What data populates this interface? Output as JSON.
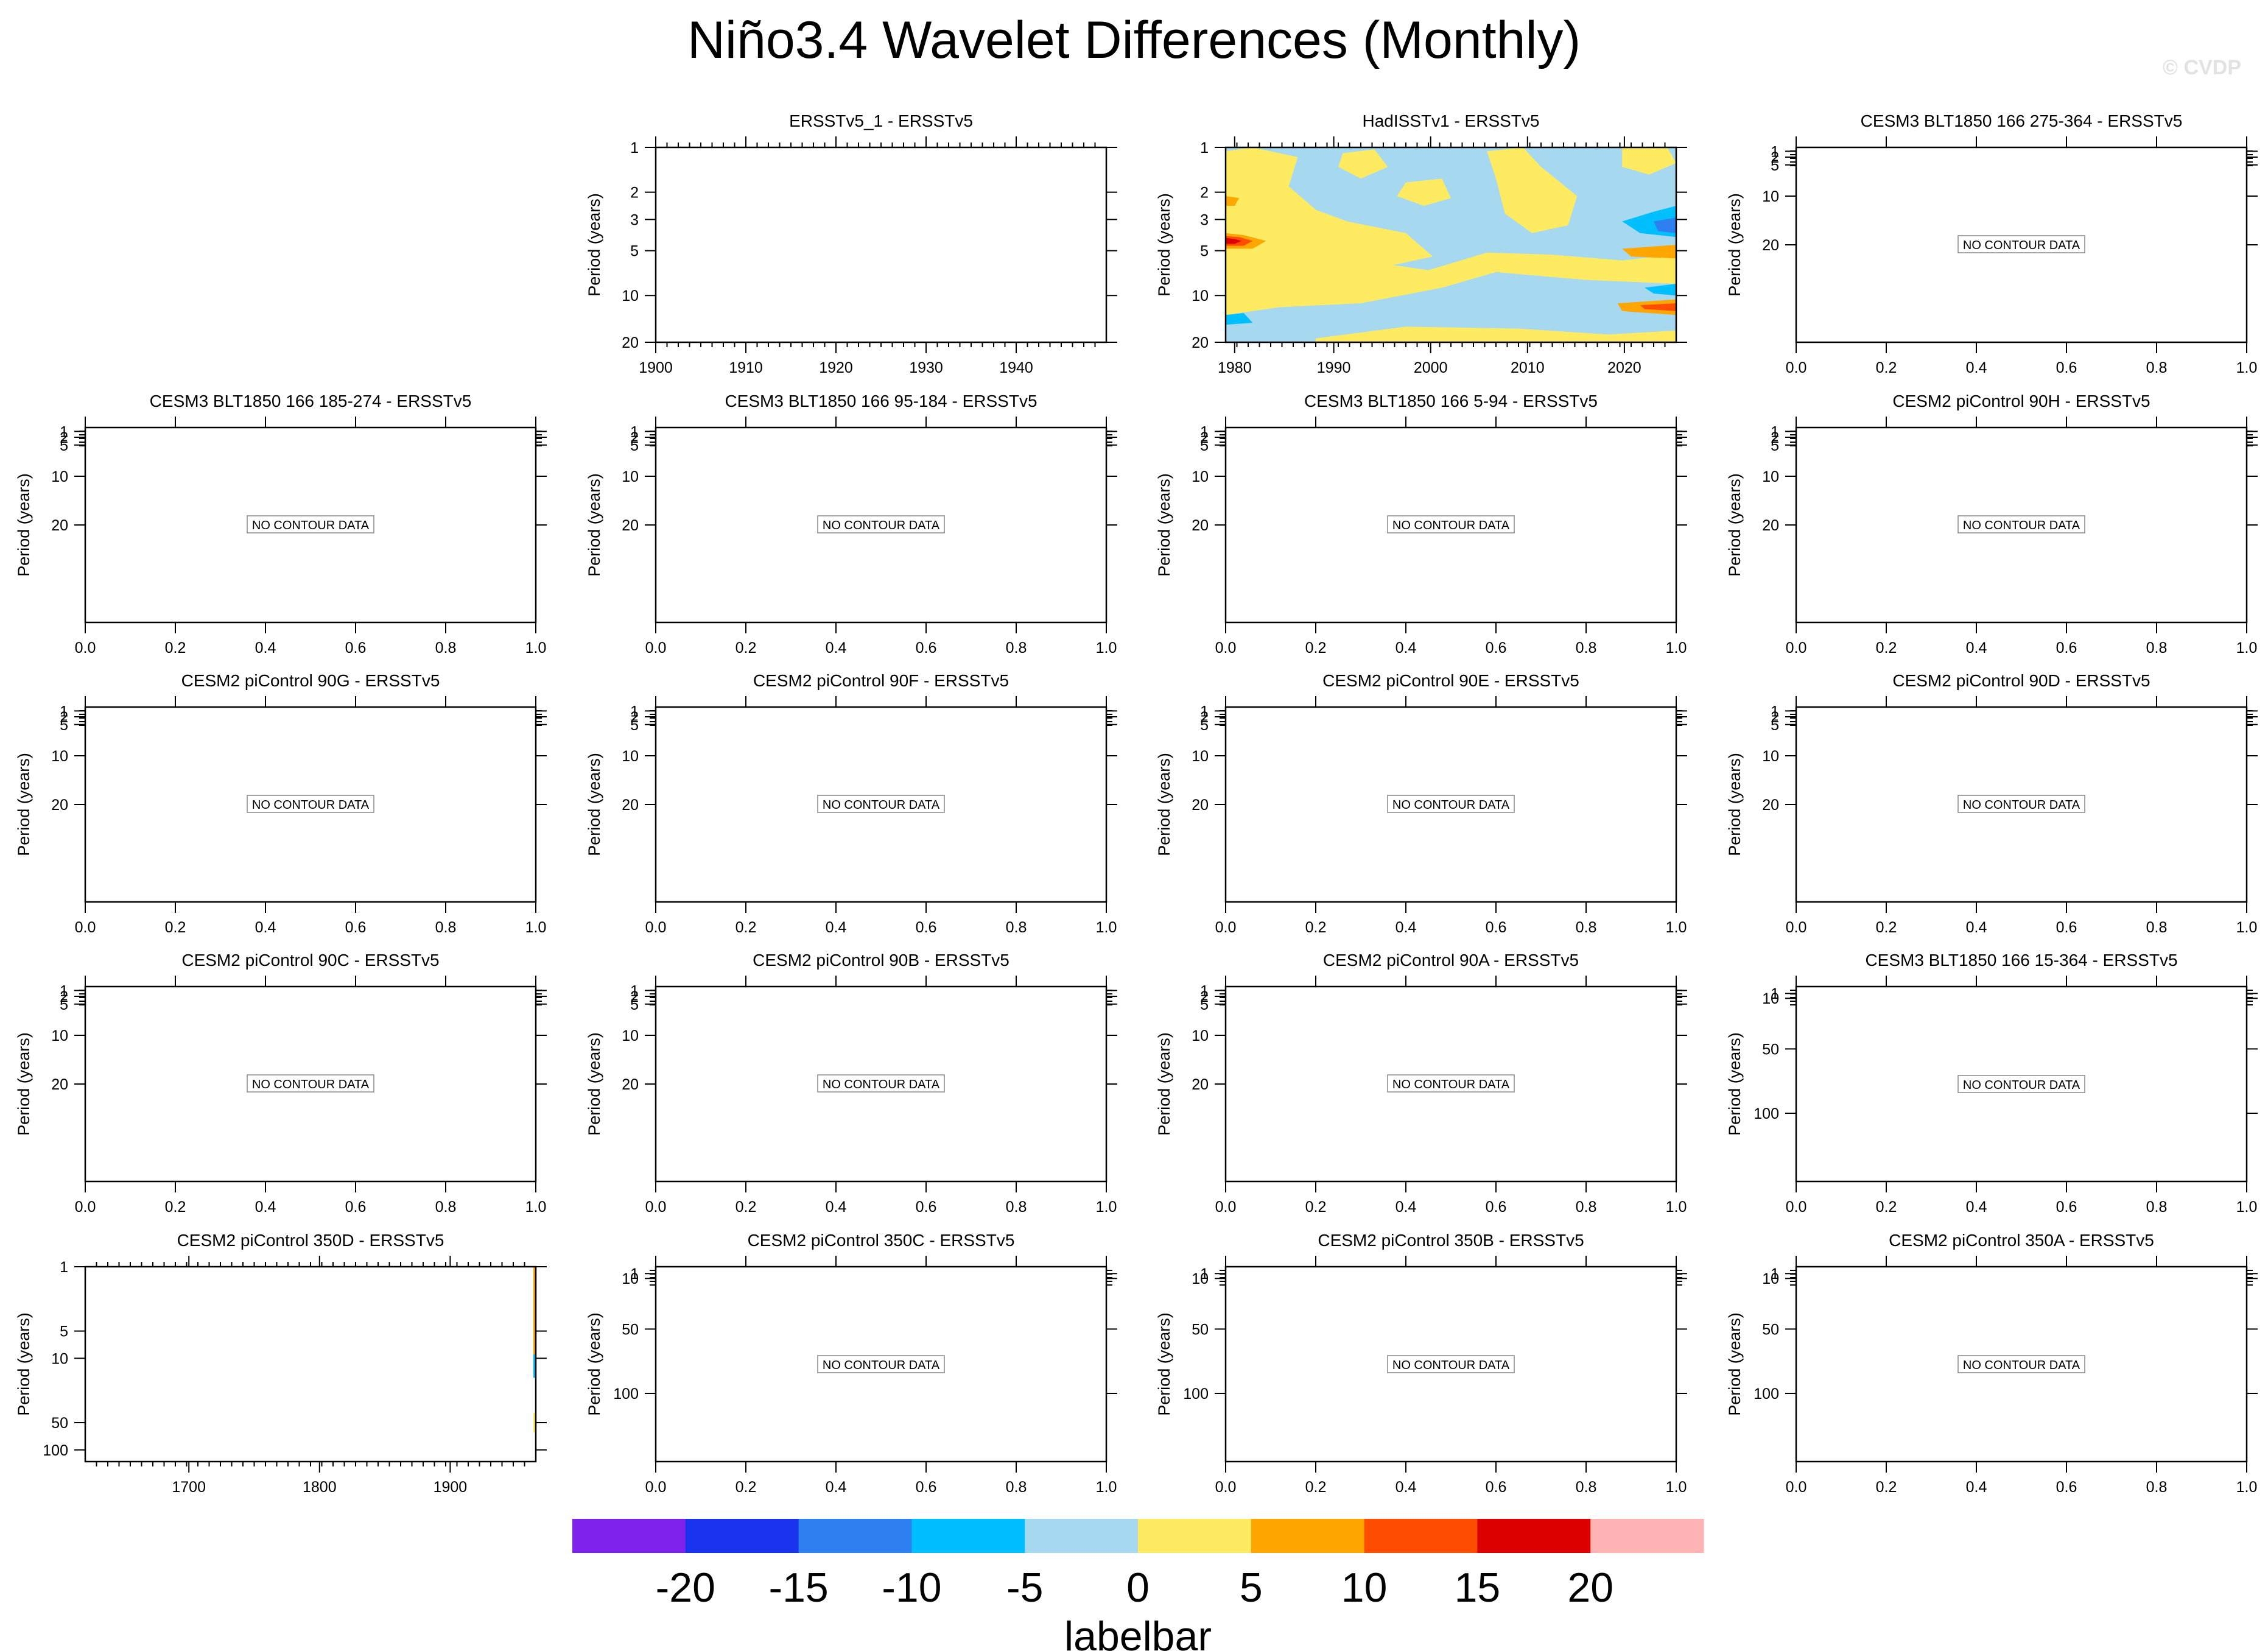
{
  "title": "Niño3.4 Wavelet Differences (Monthly)",
  "watermark": "© CVDP",
  "no_data_text": "NO CONTOUR DATA",
  "y_label": "Period (years)",
  "labelbar": {
    "label": "labelbar",
    "ticks": [
      "-20",
      "-15",
      "-10",
      "-5",
      "0",
      "5",
      "10",
      "15",
      "20"
    ],
    "colors": [
      "#7f22ec",
      "#1a33ef",
      "#2e7ff0",
      "#00bfff",
      "#a6d8f0",
      "#ffeb62",
      "#ffa600",
      "#ff4d00",
      "#dd0000",
      "#ffb3b3"
    ]
  },
  "chart_data": [
    {
      "type": "heatmap",
      "title": "ERSSTv5_1 - ERSSTv5",
      "state": "empty",
      "ylabel": "Period (years)",
      "y_ticks": [
        "1",
        "2",
        "3",
        "5",
        "10",
        "20"
      ],
      "x_ticks": [
        "1900",
        "1910",
        "1920",
        "1930",
        "1940"
      ]
    },
    {
      "type": "heatmap",
      "title": "HadISSTv1 - ERSSTv5",
      "state": "contour",
      "ylabel": "Period (years)",
      "y_ticks": [
        "1",
        "2",
        "3",
        "5",
        "10",
        "20"
      ],
      "x_ticks": [
        "1980",
        "1990",
        "2000",
        "2010",
        "2020"
      ]
    },
    {
      "type": "heatmap",
      "title": "CESM3 BLT1850 166 275-364 - ERSSTv5",
      "state": "no-data",
      "ylabel": "Period (years)",
      "y_ticks": [
        "1",
        "2",
        "5",
        "10",
        "20"
      ],
      "x_ticks": [
        "0.0",
        "0.2",
        "0.4",
        "0.6",
        "0.8",
        "1.0"
      ]
    },
    {
      "type": "heatmap",
      "title": "CESM3 BLT1850 166 185-274 - ERSSTv5",
      "state": "no-data",
      "ylabel": "Period (years)",
      "y_ticks": [
        "1",
        "2",
        "5",
        "10",
        "20"
      ],
      "x_ticks": [
        "0.0",
        "0.2",
        "0.4",
        "0.6",
        "0.8",
        "1.0"
      ]
    },
    {
      "type": "heatmap",
      "title": "CESM3 BLT1850 166 95-184 - ERSSTv5",
      "state": "no-data",
      "ylabel": "Period (years)",
      "y_ticks": [
        "1",
        "2",
        "5",
        "10",
        "20"
      ],
      "x_ticks": [
        "0.0",
        "0.2",
        "0.4",
        "0.6",
        "0.8",
        "1.0"
      ]
    },
    {
      "type": "heatmap",
      "title": "CESM3 BLT1850 166 5-94 - ERSSTv5",
      "state": "no-data",
      "ylabel": "Period (years)",
      "y_ticks": [
        "1",
        "2",
        "5",
        "10",
        "20"
      ],
      "x_ticks": [
        "0.0",
        "0.2",
        "0.4",
        "0.6",
        "0.8",
        "1.0"
      ]
    },
    {
      "type": "heatmap",
      "title": "CESM2 piControl 90H - ERSSTv5",
      "state": "no-data",
      "ylabel": "Period (years)",
      "y_ticks": [
        "1",
        "2",
        "5",
        "10",
        "20"
      ],
      "x_ticks": [
        "0.0",
        "0.2",
        "0.4",
        "0.6",
        "0.8",
        "1.0"
      ]
    },
    {
      "type": "heatmap",
      "title": "CESM2 piControl 90G - ERSSTv5",
      "state": "no-data",
      "ylabel": "Period (years)",
      "y_ticks": [
        "1",
        "2",
        "5",
        "10",
        "20"
      ],
      "x_ticks": [
        "0.0",
        "0.2",
        "0.4",
        "0.6",
        "0.8",
        "1.0"
      ]
    },
    {
      "type": "heatmap",
      "title": "CESM2 piControl 90F - ERSSTv5",
      "state": "no-data",
      "ylabel": "Period (years)",
      "y_ticks": [
        "1",
        "2",
        "5",
        "10",
        "20"
      ],
      "x_ticks": [
        "0.0",
        "0.2",
        "0.4",
        "0.6",
        "0.8",
        "1.0"
      ]
    },
    {
      "type": "heatmap",
      "title": "CESM2 piControl 90E - ERSSTv5",
      "state": "no-data",
      "ylabel": "Period (years)",
      "y_ticks": [
        "1",
        "2",
        "5",
        "10",
        "20"
      ],
      "x_ticks": [
        "0.0",
        "0.2",
        "0.4",
        "0.6",
        "0.8",
        "1.0"
      ]
    },
    {
      "type": "heatmap",
      "title": "CESM2 piControl 90D - ERSSTv5",
      "state": "no-data",
      "ylabel": "Period (years)",
      "y_ticks": [
        "1",
        "2",
        "5",
        "10",
        "20"
      ],
      "x_ticks": [
        "0.0",
        "0.2",
        "0.4",
        "0.6",
        "0.8",
        "1.0"
      ]
    },
    {
      "type": "heatmap",
      "title": "CESM2 piControl 90C - ERSSTv5",
      "state": "no-data",
      "ylabel": "Period (years)",
      "y_ticks": [
        "1",
        "2",
        "5",
        "10",
        "20"
      ],
      "x_ticks": [
        "0.0",
        "0.2",
        "0.4",
        "0.6",
        "0.8",
        "1.0"
      ]
    },
    {
      "type": "heatmap",
      "title": "CESM2 piControl 90B - ERSSTv5",
      "state": "no-data",
      "ylabel": "Period (years)",
      "y_ticks": [
        "1",
        "2",
        "5",
        "10",
        "20"
      ],
      "x_ticks": [
        "0.0",
        "0.2",
        "0.4",
        "0.6",
        "0.8",
        "1.0"
      ]
    },
    {
      "type": "heatmap",
      "title": "CESM2 piControl 90A - ERSSTv5",
      "state": "no-data",
      "ylabel": "Period (years)",
      "y_ticks": [
        "1",
        "2",
        "5",
        "10",
        "20"
      ],
      "x_ticks": [
        "0.0",
        "0.2",
        "0.4",
        "0.6",
        "0.8",
        "1.0"
      ]
    },
    {
      "type": "heatmap",
      "title": "CESM3 BLT1850 166 15-364 - ERSSTv5",
      "state": "no-data",
      "ylabel": "Period (years)",
      "y_ticks": [
        "1",
        "10",
        "50",
        "100"
      ],
      "x_ticks": [
        "0.0",
        "0.2",
        "0.4",
        "0.6",
        "0.8",
        "1.0"
      ]
    },
    {
      "type": "heatmap",
      "title": "CESM2 piControl 350D - ERSSTv5",
      "state": "edge-contour",
      "ylabel": "Period (years)",
      "y_ticks": [
        "1",
        "5",
        "10",
        "50",
        "100"
      ],
      "x_ticks": [
        "1700",
        "1800",
        "1900"
      ]
    },
    {
      "type": "heatmap",
      "title": "CESM2 piControl 350C - ERSSTv5",
      "state": "no-data",
      "ylabel": "Period (years)",
      "y_ticks": [
        "1",
        "10",
        "50",
        "100"
      ],
      "x_ticks": [
        "0.0",
        "0.2",
        "0.4",
        "0.6",
        "0.8",
        "1.0"
      ]
    },
    {
      "type": "heatmap",
      "title": "CESM2 piControl 350B - ERSSTv5",
      "state": "no-data",
      "ylabel": "Period (years)",
      "y_ticks": [
        "1",
        "10",
        "50",
        "100"
      ],
      "x_ticks": [
        "0.0",
        "0.2",
        "0.4",
        "0.6",
        "0.8",
        "1.0"
      ]
    },
    {
      "type": "heatmap",
      "title": "CESM2 piControl 350A - ERSSTv5",
      "state": "no-data",
      "ylabel": "Period (years)",
      "y_ticks": [
        "1",
        "10",
        "50",
        "100"
      ],
      "x_ticks": [
        "0.0",
        "0.2",
        "0.4",
        "0.6",
        "0.8",
        "1.0"
      ]
    }
  ]
}
